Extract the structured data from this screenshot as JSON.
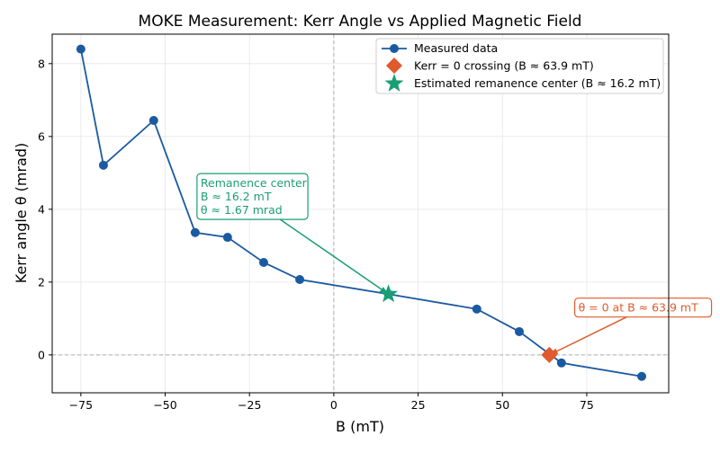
{
  "chart_data": {
    "type": "line",
    "title": "MOKE Measurement: Kerr Angle vs Applied Magnetic Field",
    "xlabel": "B (mT)",
    "ylabel": "Kerr angle θ (mrad)",
    "xlim": [
      -83.5,
      99.3
    ],
    "ylim": [
      -1.04,
      8.81
    ],
    "xticks": [
      -75,
      -50,
      -25,
      0,
      25,
      50,
      75
    ],
    "xtick_labels": [
      "−75",
      "−50",
      "−25",
      "0",
      "25",
      "50",
      "75"
    ],
    "yticks": [
      0,
      2,
      4,
      6,
      8
    ],
    "ytick_labels": [
      "0",
      "2",
      "4",
      "6",
      "8"
    ],
    "grid": true,
    "legend_position": "top-right",
    "series": [
      {
        "name": "Measured data",
        "color": "#1a5aa0",
        "x": [
          -75,
          -68.3,
          -53.4,
          -41.1,
          -31.5,
          -20.8,
          -10.1,
          16.2,
          42.4,
          55.0,
          67.5,
          91.3
        ],
        "y": [
          8.4,
          5.21,
          6.44,
          3.36,
          3.23,
          2.54,
          2.07,
          1.67,
          1.26,
          0.64,
          -0.22,
          -0.59
        ]
      }
    ],
    "markers": [
      {
        "name": "Kerr = 0 crossing (B ≈ 63.9 mT)",
        "shape": "diamond",
        "color": "#e05a2b",
        "x": 63.9,
        "y": 0
      },
      {
        "name": "Estimated remanence center (B ≈ 16.2 mT)",
        "shape": "star",
        "color": "#1a9e74",
        "x": 16.2,
        "y": 1.67
      }
    ],
    "reference_lines": {
      "x": 0,
      "y": 0
    },
    "annotations": [
      {
        "lines": [
          "Remanence center",
          "B ≈ 16.2 mT",
          "θ ≈ 1.67 mrad"
        ],
        "color": "#1a9e74",
        "target": [
          16.2,
          1.67
        ],
        "text_at": [
          -39.5,
          4.4
        ]
      },
      {
        "lines": [
          "θ = 0 at B ≈ 63.9 mT"
        ],
        "color": "#e05a2b",
        "target": [
          63.9,
          0
        ],
        "text_at": [
          72.5,
          1.3
        ]
      }
    ]
  }
}
